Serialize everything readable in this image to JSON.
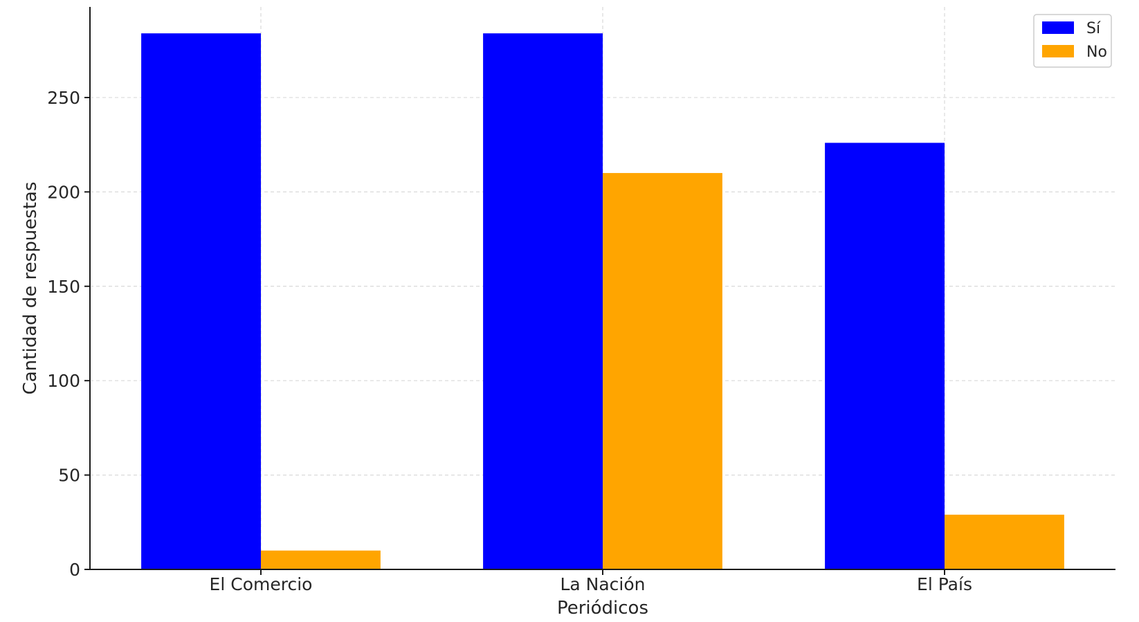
{
  "chart_data": {
    "type": "bar",
    "title": "",
    "xlabel": "Periódicos",
    "ylabel": "Cantidad de respuestas",
    "categories": [
      "El Comercio",
      "La Nación",
      "El País"
    ],
    "series": [
      {
        "name": "Sí",
        "values": [
          284,
          284,
          226
        ],
        "color": "#0000ff"
      },
      {
        "name": "No",
        "values": [
          10,
          210,
          29
        ],
        "color": "#ffa500"
      }
    ],
    "ylim": [
      0,
      298
    ],
    "yticks": [
      0,
      50,
      100,
      150,
      200,
      250
    ],
    "grid": true,
    "legend_position": "top-right"
  }
}
